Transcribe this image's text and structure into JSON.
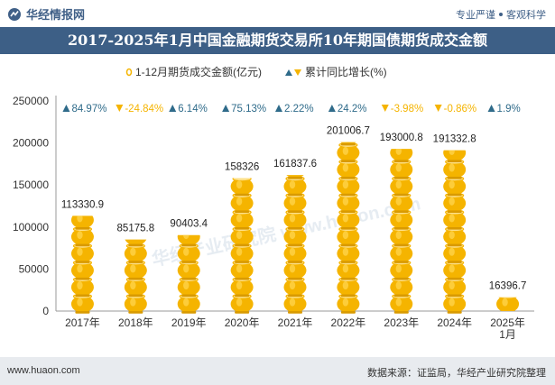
{
  "header": {
    "brand": "华经情报网",
    "tag_left": "专业严谨",
    "tag_right": "客观科学"
  },
  "footer": {
    "url": "www.huaon.com",
    "source": "数据来源：证监局，华经产业研究院整理"
  },
  "watermark": "华经产业研究院 www.huaon.com",
  "colors": {
    "title_bg": "#3d5f86",
    "bar_gold": "#f5b400",
    "bar_light": "#fde08a",
    "growth_up": "#2f6b8a",
    "growth_down": "#f5b400"
  },
  "chart_data": {
    "type": "bar",
    "title": "2017-2025年1月中国金融期货交易所10年期国债期货成交金额",
    "legend": [
      "1-12月期货成交金额(亿元)",
      "累计同比增长(%)"
    ],
    "categories": [
      "2017年",
      "2018年",
      "2019年",
      "2020年",
      "2021年",
      "2022年",
      "2023年",
      "2024年",
      "2025年\n1月"
    ],
    "value_labels": [
      "113330.9",
      "85175.8",
      "90403.4",
      "158326",
      "161837.6",
      "201006.7",
      "193000.8",
      "191332.8",
      "16396.7"
    ],
    "values": [
      113330.9,
      85175.8,
      90403.4,
      158326,
      161837.6,
      201006.7,
      193000.8,
      191332.8,
      16396.7
    ],
    "growth_labels": [
      "84.97%",
      "-24.84%",
      "6.14%",
      "75.13%",
      "2.22%",
      "24.2%",
      "-3.98%",
      "-0.86%",
      "1.9%"
    ],
    "growth": [
      84.97,
      -24.84,
      6.14,
      75.13,
      2.22,
      24.2,
      -3.98,
      -0.86,
      1.9
    ],
    "yticks": [
      "0",
      "50000",
      "100000",
      "150000",
      "200000",
      "250000"
    ],
    "ylim": [
      0,
      250000
    ],
    "xlabel": "",
    "ylabel": ""
  }
}
